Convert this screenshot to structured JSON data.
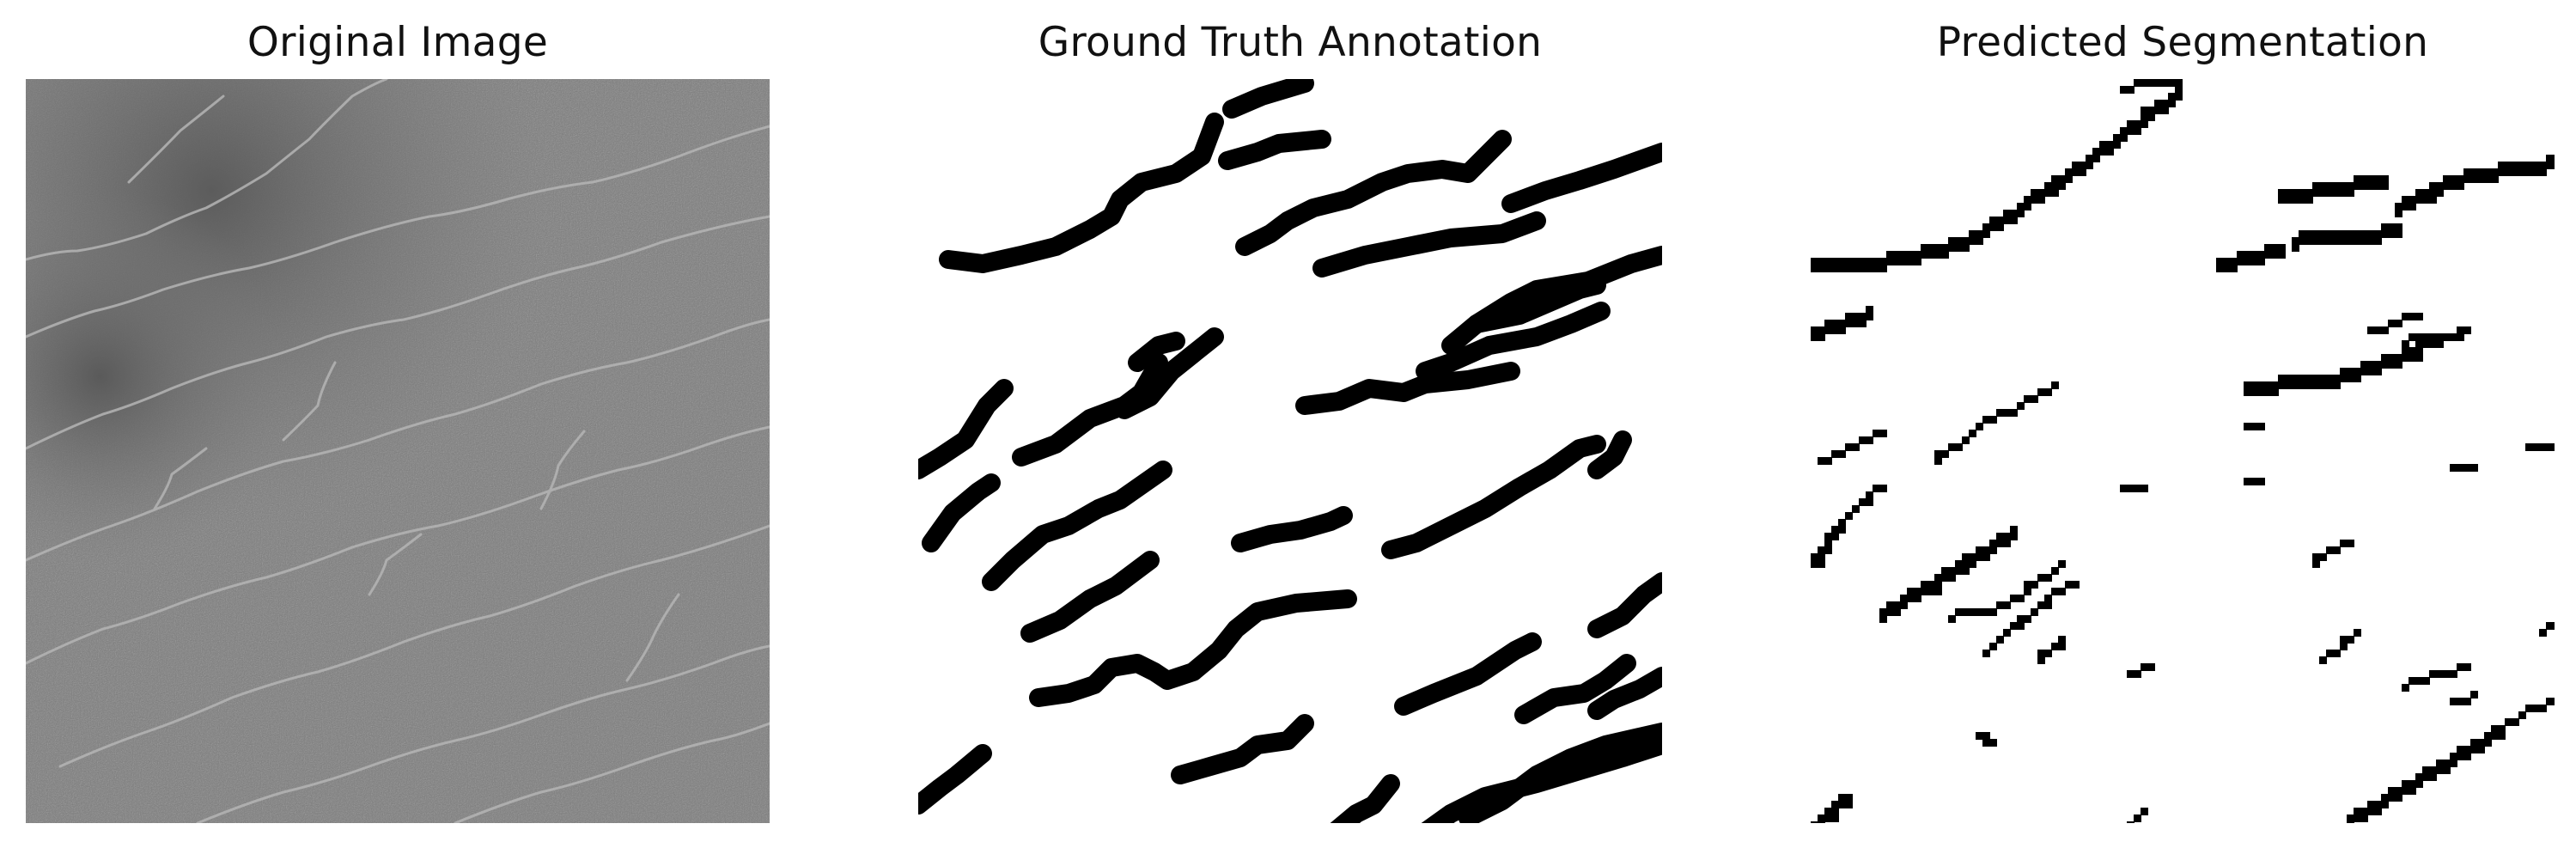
{
  "panels": [
    {
      "title": "Original Image",
      "kind": "grayscale-photo"
    },
    {
      "title": "Ground Truth Annotation",
      "kind": "binary-mask-smooth"
    },
    {
      "title": "Predicted Segmentation",
      "kind": "binary-mask-blocky"
    }
  ],
  "colors": {
    "background": "#ffffff",
    "mask_foreground": "#000000",
    "mask_background": "#ffffff",
    "photo_base": "#7b7b7b",
    "photo_crack": "#b9b9b9"
  }
}
